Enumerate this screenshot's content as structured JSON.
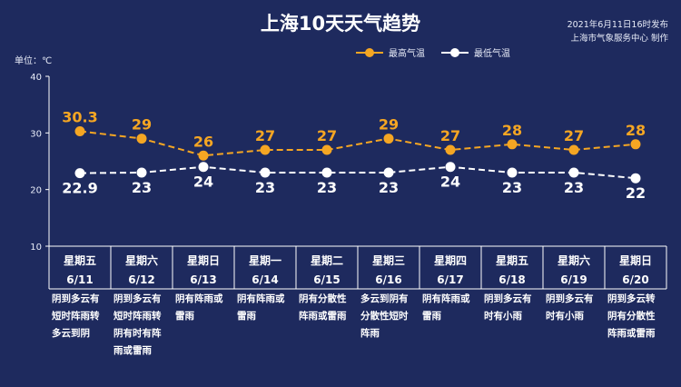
{
  "title": "上海10天天气趋势",
  "publish_time": "2021年6月11日16时发布",
  "publisher": "上海市气象服务中心 制作",
  "unit_label": "单位：℃",
  "colors": {
    "background": "#1e2a5e",
    "high": "#f5a623",
    "low": "#ffffff",
    "axis": "#ffffff"
  },
  "legend": {
    "high": "最高气温",
    "low": "最低气温"
  },
  "days": [
    {
      "weekday": "星期五",
      "date": "6/11",
      "desc": "阴到多云有短时阵雨转多云到阴"
    },
    {
      "weekday": "星期六",
      "date": "6/12",
      "desc": "阴到多云有短时阵雨转阴有时有阵雨或雷雨"
    },
    {
      "weekday": "星期日",
      "date": "6/13",
      "desc": "阴有阵雨或雷雨"
    },
    {
      "weekday": "星期一",
      "date": "6/14",
      "desc": "阴有阵雨或雷雨"
    },
    {
      "weekday": "星期二",
      "date": "6/15",
      "desc": "阴有分散性阵雨或雷雨"
    },
    {
      "weekday": "星期三",
      "date": "6/16",
      "desc": "多云到阴有分散性短时阵雨"
    },
    {
      "weekday": "星期四",
      "date": "6/17",
      "desc": "阴有阵雨或雷雨"
    },
    {
      "weekday": "星期五",
      "date": "6/18",
      "desc": "阴到多云有时有小雨"
    },
    {
      "weekday": "星期六",
      "date": "6/19",
      "desc": "阴到多云有时有小雨"
    },
    {
      "weekday": "星期日",
      "date": "6/20",
      "desc": "阴到多云转阴有分散性阵雨或雷雨"
    }
  ],
  "chart_data": {
    "type": "line",
    "title": "上海10天天气趋势",
    "ylabel": "单位：℃",
    "ylim": [
      10,
      40
    ],
    "yticks": [
      10,
      20,
      30,
      40
    ],
    "categories": [
      "6/11",
      "6/12",
      "6/13",
      "6/14",
      "6/15",
      "6/16",
      "6/17",
      "6/18",
      "6/19",
      "6/20"
    ],
    "series": [
      {
        "name": "最高气温",
        "values": [
          30.3,
          29,
          26,
          27,
          27,
          29,
          27,
          28,
          27,
          28
        ],
        "labels": [
          "30.3",
          "29",
          "26",
          "27",
          "27",
          "29",
          "27",
          "28",
          "27",
          "28"
        ]
      },
      {
        "name": "最低气温",
        "values": [
          22.9,
          23,
          24,
          23,
          23,
          23,
          24,
          23,
          23,
          22
        ],
        "labels": [
          "22.9",
          "23",
          "24",
          "23",
          "23",
          "23",
          "24",
          "23",
          "23",
          "22"
        ]
      }
    ],
    "legend_position": "top-right",
    "grid": false
  }
}
